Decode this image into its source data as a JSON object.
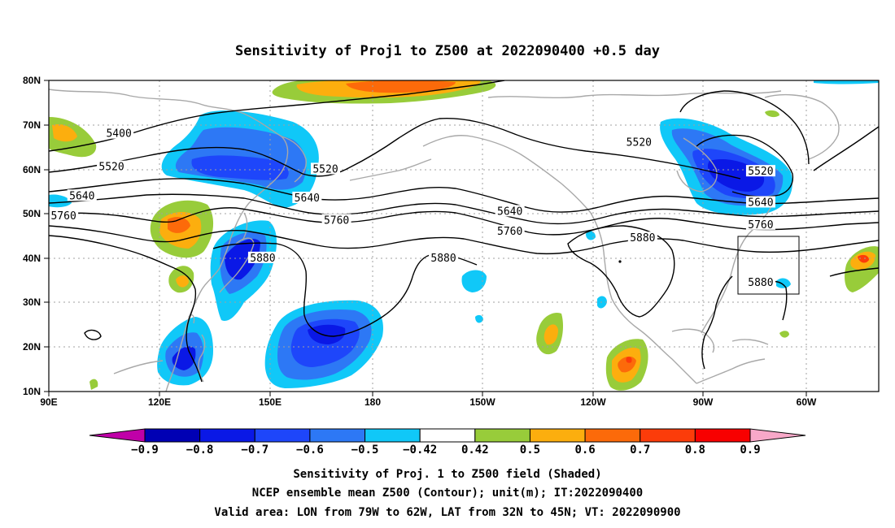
{
  "title": "Sensitivity of Proj1 to Z500 at 2022090400 +0.5 day",
  "map": {
    "lat_labels": [
      "80N",
      "70N",
      "60N",
      "50N",
      "40N",
      "30N",
      "20N",
      "10N"
    ],
    "lon_labels": [
      "90E",
      "120E",
      "150E",
      "180",
      "150W",
      "120W",
      "90W",
      "60W"
    ],
    "extent": {
      "lon_min": 90,
      "lon_max": 315,
      "lat_min": 10,
      "lat_max": 80
    },
    "grid": "dotted",
    "contour_labels": [
      {
        "text": "5400",
        "lon": 109,
        "lat": 68
      },
      {
        "text": "5520",
        "lon": 107,
        "lat": 60.5
      },
      {
        "text": "5520",
        "lon": 165,
        "lat": 60
      },
      {
        "text": "5520",
        "lon": 250,
        "lat": 66
      },
      {
        "text": "5520",
        "lon": 283,
        "lat": 59.5
      },
      {
        "text": "5640",
        "lon": 99,
        "lat": 54
      },
      {
        "text": "5640",
        "lon": 160,
        "lat": 53.5
      },
      {
        "text": "5640",
        "lon": 215,
        "lat": 50.5
      },
      {
        "text": "5640",
        "lon": 283,
        "lat": 52.5
      },
      {
        "text": "5760",
        "lon": 94,
        "lat": 49.5
      },
      {
        "text": "5760",
        "lon": 168,
        "lat": 48.5
      },
      {
        "text": "5760",
        "lon": 215,
        "lat": 46
      },
      {
        "text": "5760",
        "lon": 283,
        "lat": 47.5
      },
      {
        "text": "5880",
        "lon": 148,
        "lat": 40
      },
      {
        "text": "5880",
        "lon": 197,
        "lat": 40
      },
      {
        "text": "5880",
        "lon": 251,
        "lat": 44.5
      },
      {
        "text": "5880",
        "lon": 283,
        "lat": 34.5
      }
    ],
    "valid_box": {
      "lon_min": 281,
      "lon_max": 298,
      "lat_min": 32,
      "lat_max": 45
    }
  },
  "colorbar": {
    "labels": [
      "−0.9",
      "−0.8",
      "−0.7",
      "−0.6",
      "−0.5",
      "−0.42",
      "0.42",
      "0.5",
      "0.6",
      "0.7",
      "0.8",
      "0.9"
    ],
    "colors": [
      "#c000a8",
      "#0000b4",
      "#0a18e6",
      "#1e46fa",
      "#2d78f5",
      "#10c8f8",
      "#ffffff",
      "#98cc3a",
      "#fcae0e",
      "#fc6a0a",
      "#fc3c0a",
      "#f80000",
      "#f8a8c8"
    ]
  },
  "captions": {
    "line1": "Sensitivity of Proj. 1 to Z500 field (Shaded)",
    "line2": "NCEP ensemble mean Z500 (Contour); unit(m); IT:2022090400",
    "line3": "Valid area: LON from 79W to 62W, LAT from 32N to 45N; VT: 2022090900"
  }
}
